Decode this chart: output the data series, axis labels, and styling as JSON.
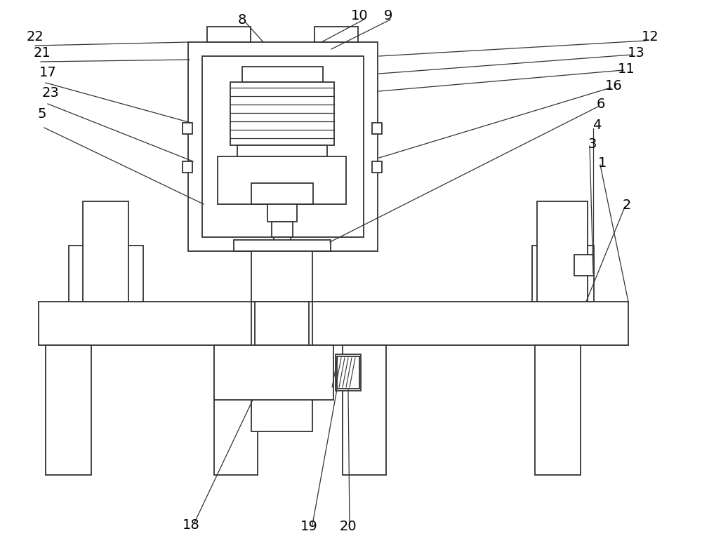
{
  "bg_color": "#ffffff",
  "line_color": "#333333",
  "lw": 1.3,
  "fig_w": 10.0,
  "fig_h": 7.84,
  "dpi": 100
}
